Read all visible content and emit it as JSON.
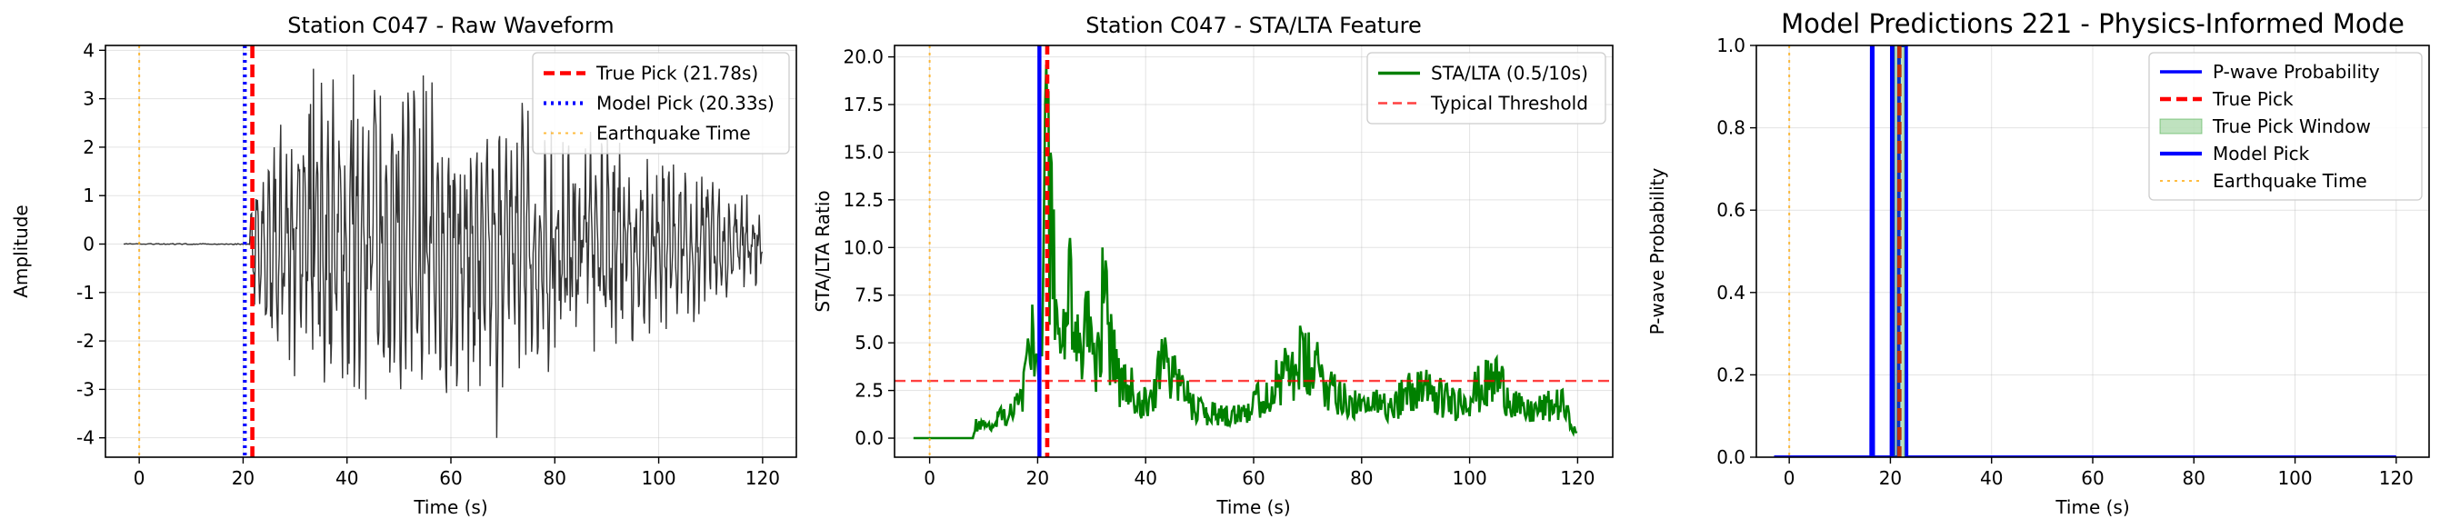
{
  "chart_data": [
    {
      "type": "line",
      "title": "Station C047 - Raw Waveform",
      "xlabel": "Time (s)",
      "ylabel": "Amplitude",
      "xlim": [
        -6.5,
        126.5
      ],
      "ylim": [
        -4.4,
        4.1
      ],
      "xticks": [
        0,
        20,
        40,
        60,
        80,
        100,
        120
      ],
      "yticks": [
        -4,
        -3,
        -2,
        -1,
        0,
        1,
        2,
        3,
        4
      ],
      "grid": true,
      "legend_position": "upper right",
      "colors": {
        "waveform": "#333333",
        "true_pick": "#ff0000",
        "model_pick": "#0000ff",
        "earthquake": "#ffa500"
      },
      "series": [
        {
          "role": "waveform",
          "style": "solid",
          "x_range": [
            -3,
            120
          ],
          "onset": 21.5,
          "envelope": [
            [
              21.5,
              1.2
            ],
            [
              26,
              2.4
            ],
            [
              34,
              3.5
            ],
            [
              48,
              3.5
            ],
            [
              60,
              3.4
            ],
            [
              72,
              3.0
            ],
            [
              85,
              2.6
            ],
            [
              97,
              2.2
            ],
            [
              110,
              1.5
            ],
            [
              120,
              0.9
            ]
          ],
          "peaks": [
            [
              33.5,
              3.62
            ],
            [
              41.2,
              3.5
            ],
            [
              54.7,
              3.48
            ],
            [
              68.8,
              -4.0
            ]
          ]
        },
        {
          "name": "True Pick (21.78s)",
          "role": "true_pick",
          "style": "dashed",
          "x": 21.78
        },
        {
          "name": "Model Pick (20.33s)",
          "role": "model_pick",
          "style": "dotted",
          "x": 20.33
        },
        {
          "name": "Earthquake Time",
          "role": "earthquake",
          "style": "dotted",
          "x": 0
        }
      ]
    },
    {
      "type": "line",
      "title": "Station C047 - STA/LTA Feature",
      "xlabel": "Time (s)",
      "ylabel": "STA/LTA Ratio",
      "xlim": [
        -6.5,
        126.5
      ],
      "ylim": [
        -1.0,
        20.6
      ],
      "xticks": [
        0,
        20,
        40,
        60,
        80,
        100,
        120
      ],
      "yticks": [
        "0.0",
        "2.5",
        "5.0",
        "7.5",
        "10.0",
        "12.5",
        "15.0",
        "17.5",
        "20.0"
      ],
      "grid": true,
      "legend_position": "upper right",
      "colors": {
        "sta_lta": "#008000",
        "threshold": "#ff0000",
        "true_pick": "#ff0000",
        "model_pick": "#0000ff",
        "earthquake": "#ffa500"
      },
      "series": [
        {
          "name": "STA/LTA (0.5/10s)",
          "role": "sta_lta",
          "style": "solid",
          "x_range": [
            -3,
            120
          ],
          "key_points": [
            [
              -3,
              0
            ],
            [
              8,
              0
            ],
            [
              8.5,
              1.0
            ],
            [
              11,
              0.8
            ],
            [
              13,
              1.5
            ],
            [
              15,
              1.8
            ],
            [
              17,
              2.5
            ],
            [
              18,
              4.5
            ],
            [
              19,
              7.0
            ],
            [
              20,
              4.0
            ],
            [
              20.5,
              6.0
            ],
            [
              21,
              7.8
            ],
            [
              21.5,
              19.6
            ],
            [
              22,
              18.2
            ],
            [
              23,
              12.0
            ],
            [
              24,
              5.8
            ],
            [
              26,
              10.5
            ],
            [
              28,
              4.8
            ],
            [
              29,
              7.7
            ],
            [
              31,
              5.0
            ],
            [
              32,
              10.0
            ],
            [
              35,
              4.2
            ],
            [
              40,
              2.5
            ],
            [
              43,
              5.2
            ],
            [
              45,
              4.3
            ],
            [
              50,
              2.0
            ],
            [
              55,
              1.7
            ],
            [
              60,
              2.4
            ],
            [
              69,
              5.5
            ],
            [
              80,
              2.0
            ],
            [
              87,
              2.9
            ],
            [
              91,
              3.5
            ],
            [
              97,
              2.5
            ],
            [
              105,
              4.2
            ],
            [
              110,
              1.8
            ],
            [
              117,
              2.5
            ],
            [
              120,
              0.1
            ]
          ]
        },
        {
          "name": "Typical Threshold",
          "role": "threshold",
          "style": "dashed",
          "y": 3.0
        },
        {
          "role": "true_pick",
          "style": "dashed",
          "x": 21.78
        },
        {
          "role": "model_pick",
          "style": "solid",
          "x": 20.33
        },
        {
          "role": "earthquake",
          "style": "dotted",
          "x": 0
        }
      ]
    },
    {
      "type": "line",
      "title": "Model Predictions 221 - Physics-Informed Mode",
      "xlabel": "Time (s)",
      "ylabel": "P-wave Probability",
      "xlim": [
        -6.5,
        126.5
      ],
      "ylim": [
        0.0,
        1.0
      ],
      "xticks": [
        0,
        20,
        40,
        60,
        80,
        100,
        120
      ],
      "yticks": [
        "0.0",
        "0.2",
        "0.4",
        "0.6",
        "0.8",
        "1.0"
      ],
      "grid": true,
      "legend_position": "upper right",
      "colors": {
        "probability": "#0000ff",
        "true_pick": "#ff0000",
        "window": "#2ca02c",
        "model_pick": "#0000ff",
        "earthquake": "#ffa500"
      },
      "series": [
        {
          "name": "P-wave Probability",
          "role": "probability",
          "style": "solid",
          "points": [
            [
              -3,
              0
            ],
            [
              16.2,
              0
            ],
            [
              16.3,
              1.0
            ],
            [
              16.5,
              1.0
            ],
            [
              16.6,
              0
            ],
            [
              20.2,
              0
            ],
            [
              20.3,
              1.0
            ],
            [
              20.5,
              1.0
            ],
            [
              20.6,
              0
            ],
            [
              21.6,
              0
            ],
            [
              21.7,
              1.0
            ],
            [
              23.1,
              1.0
            ],
            [
              23.2,
              0
            ],
            [
              120,
              0
            ]
          ]
        },
        {
          "name": "True Pick",
          "role": "true_pick",
          "style": "dashed",
          "x": 21.78
        },
        {
          "name": "True Pick Window",
          "role": "window",
          "style": "fill",
          "x_range": [
            20.78,
            22.78
          ]
        },
        {
          "name": "Model Pick",
          "role": "model_pick",
          "style": "solid",
          "x": 20.33
        },
        {
          "name": "Earthquake Time",
          "role": "earthquake",
          "style": "dotted",
          "x": 0
        }
      ]
    }
  ]
}
